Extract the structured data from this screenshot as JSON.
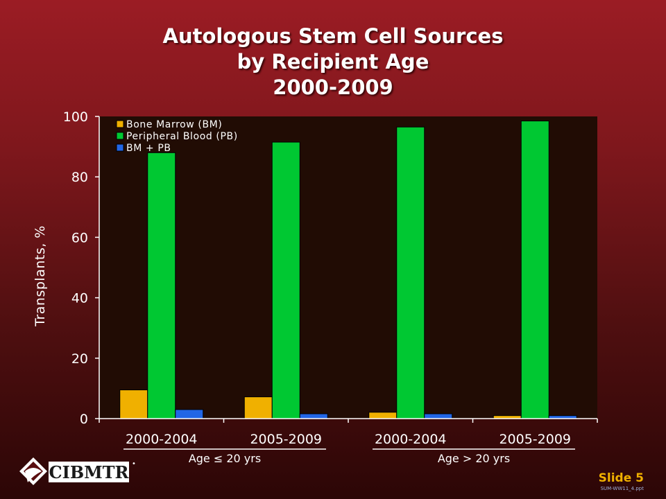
{
  "title_lines": [
    "Autologous Stem Cell Sources",
    "by Recipient Age",
    "2000-2009"
  ],
  "chart_data": {
    "type": "bar",
    "categories": [
      "2000-2004",
      "2005-2009",
      "2000-2004",
      "2005-2009"
    ],
    "groups": [
      {
        "label": "Age ≤ 20 yrs",
        "categories": [
          0,
          1
        ]
      },
      {
        "label": "Age > 20 yrs",
        "categories": [
          2,
          3
        ]
      }
    ],
    "series": [
      {
        "name": "Bone Marrow (BM)",
        "color": "#f0b000",
        "values": [
          9.5,
          7.2,
          2.1,
          1.0
        ]
      },
      {
        "name": "Peripheral Blood (PB)",
        "color": "#00c832",
        "values": [
          88.0,
          91.5,
          96.5,
          98.5
        ]
      },
      {
        "name": "BM + PB",
        "color": "#2266e6",
        "values": [
          3.0,
          1.6,
          1.6,
          1.0
        ]
      }
    ],
    "ylabel": "Transplants, %",
    "ylim": [
      0,
      100
    ],
    "yticks": [
      0,
      20,
      40,
      60,
      80,
      100
    ],
    "legend_position": "top-left",
    "plot_background": "#210c04",
    "grid": false
  },
  "logo_text": "CIBMTR",
  "slide_label": "Slide 5",
  "slide_code": "SUM-WW11_4.ppt"
}
